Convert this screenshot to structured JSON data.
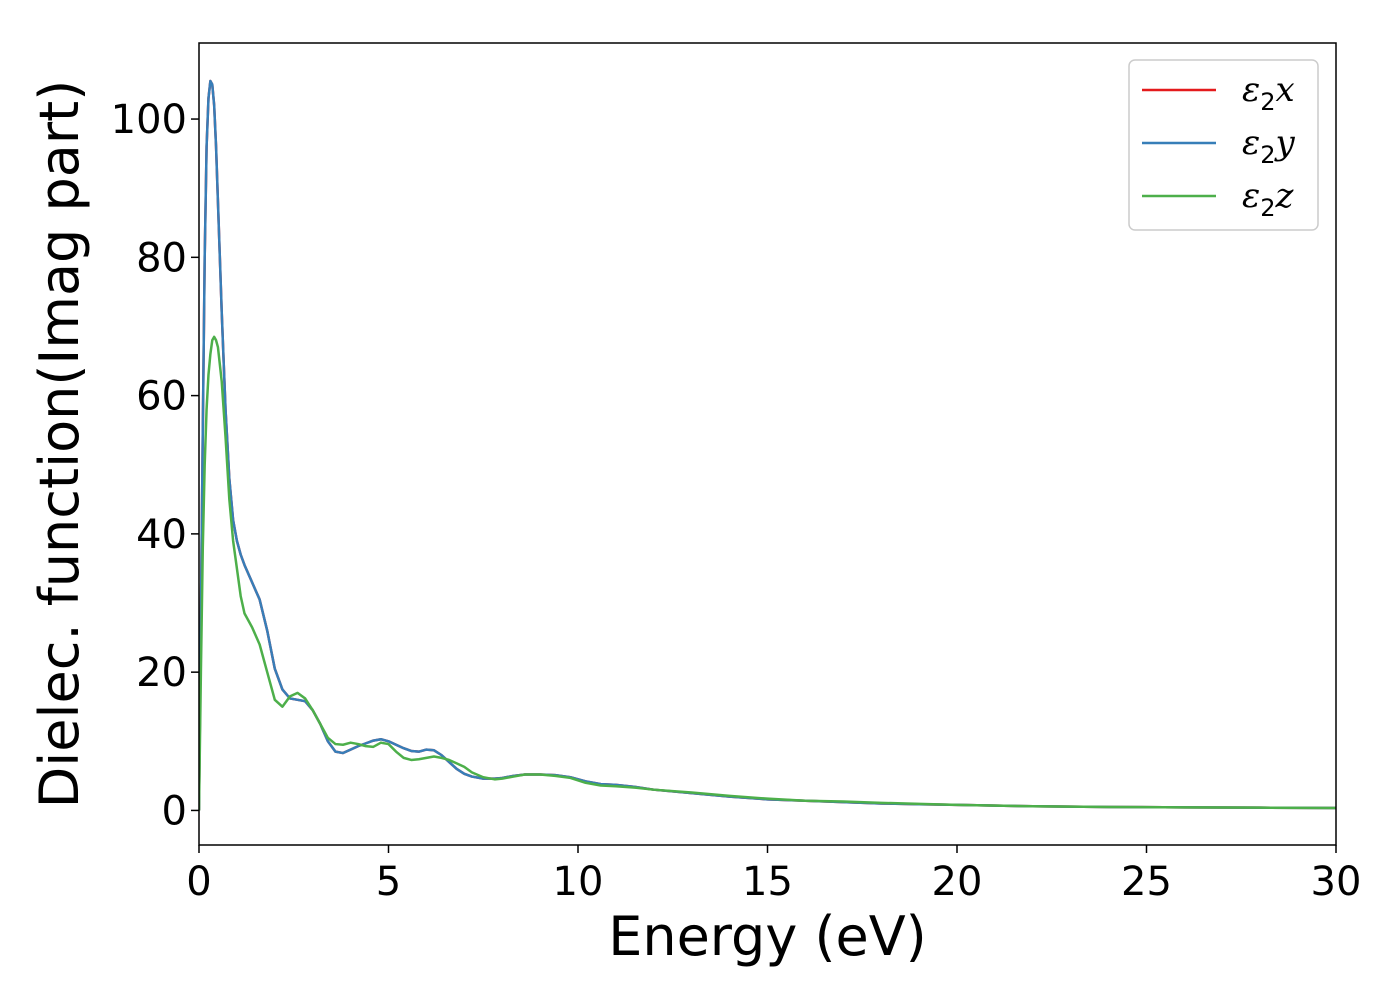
{
  "chart_data": {
    "type": "line",
    "xlabel": "Energy (eV)",
    "ylabel": "Dielec. function(Imag part)",
    "xlim": [
      0,
      30
    ],
    "ylim": [
      -5,
      111
    ],
    "xticks": [
      0,
      5,
      10,
      15,
      20,
      25,
      30
    ],
    "yticks": [
      0,
      20,
      40,
      60,
      80,
      100
    ],
    "grid": false,
    "legend_position": "top-right",
    "series": [
      {
        "name": "ε₂x",
        "legend_base": "ε",
        "legend_sub": "2",
        "legend_var": "x",
        "color": "#e41a1c",
        "x": [
          0.0,
          0.05,
          0.1,
          0.15,
          0.2,
          0.25,
          0.3,
          0.35,
          0.4,
          0.45,
          0.5,
          0.6,
          0.7,
          0.8,
          0.9,
          1.0,
          1.1,
          1.2,
          1.4,
          1.6,
          1.8,
          2.0,
          2.2,
          2.4,
          2.6,
          2.8,
          3.0,
          3.2,
          3.4,
          3.6,
          3.8,
          4.0,
          4.2,
          4.4,
          4.6,
          4.8,
          5.0,
          5.2,
          5.4,
          5.6,
          5.8,
          6.0,
          6.2,
          6.4,
          6.6,
          6.8,
          7.0,
          7.2,
          7.5,
          7.8,
          8.0,
          8.3,
          8.6,
          9.0,
          9.4,
          9.8,
          10.2,
          10.6,
          11.0,
          11.5,
          12.0,
          13.0,
          14.0,
          15.0,
          16.0,
          17.0,
          18.0,
          19.0,
          20.0,
          22.0,
          24.0,
          26.0,
          28.0,
          30.0
        ],
        "y": [
          0.0,
          28,
          55,
          80,
          96,
          103,
          105.5,
          105,
          102,
          96,
          88,
          72,
          58,
          48,
          42,
          39,
          37,
          35.5,
          33,
          30.5,
          26,
          20.5,
          17.5,
          16.2,
          16,
          15.8,
          14.5,
          12.5,
          10,
          8.5,
          8.3,
          8.8,
          9.3,
          9.7,
          10.1,
          10.3,
          10.0,
          9.5,
          9.0,
          8.6,
          8.5,
          8.8,
          8.7,
          8.0,
          7.0,
          6.0,
          5.3,
          4.9,
          4.6,
          4.6,
          4.7,
          5.0,
          5.2,
          5.2,
          5.1,
          4.8,
          4.2,
          3.8,
          3.7,
          3.4,
          3.0,
          2.5,
          2.0,
          1.6,
          1.4,
          1.2,
          1.0,
          0.9,
          0.8,
          0.6,
          0.5,
          0.45,
          0.4,
          0.35
        ]
      },
      {
        "name": "ε₂y",
        "legend_base": "ε",
        "legend_sub": "2",
        "legend_var": "y",
        "color": "#377eb8",
        "x": [
          0.0,
          0.05,
          0.1,
          0.15,
          0.2,
          0.25,
          0.3,
          0.35,
          0.4,
          0.45,
          0.5,
          0.6,
          0.7,
          0.8,
          0.9,
          1.0,
          1.1,
          1.2,
          1.4,
          1.6,
          1.8,
          2.0,
          2.2,
          2.4,
          2.6,
          2.8,
          3.0,
          3.2,
          3.4,
          3.6,
          3.8,
          4.0,
          4.2,
          4.4,
          4.6,
          4.8,
          5.0,
          5.2,
          5.4,
          5.6,
          5.8,
          6.0,
          6.2,
          6.4,
          6.6,
          6.8,
          7.0,
          7.2,
          7.5,
          7.8,
          8.0,
          8.3,
          8.6,
          9.0,
          9.4,
          9.8,
          10.2,
          10.6,
          11.0,
          11.5,
          12.0,
          13.0,
          14.0,
          15.0,
          16.0,
          17.0,
          18.0,
          19.0,
          20.0,
          22.0,
          24.0,
          26.0,
          28.0,
          30.0
        ],
        "y": [
          0.0,
          28,
          55,
          80,
          96,
          103,
          105.5,
          105,
          102,
          96,
          88,
          72,
          58,
          48,
          42,
          39,
          37,
          35.5,
          33,
          30.5,
          26,
          20.5,
          17.5,
          16.2,
          16,
          15.8,
          14.5,
          12.5,
          10,
          8.5,
          8.3,
          8.8,
          9.3,
          9.7,
          10.1,
          10.3,
          10.0,
          9.5,
          9.0,
          8.6,
          8.5,
          8.8,
          8.7,
          8.0,
          7.0,
          6.0,
          5.3,
          4.9,
          4.6,
          4.6,
          4.7,
          5.0,
          5.2,
          5.2,
          5.1,
          4.8,
          4.2,
          3.8,
          3.7,
          3.4,
          3.0,
          2.5,
          2.0,
          1.6,
          1.4,
          1.2,
          1.0,
          0.9,
          0.8,
          0.6,
          0.5,
          0.45,
          0.4,
          0.35
        ]
      },
      {
        "name": "ε₂z",
        "legend_base": "ε",
        "legend_sub": "2",
        "legend_var": "z",
        "color": "#4daf4a",
        "x": [
          0.0,
          0.05,
          0.1,
          0.15,
          0.2,
          0.25,
          0.3,
          0.35,
          0.4,
          0.45,
          0.5,
          0.6,
          0.7,
          0.8,
          0.9,
          1.0,
          1.1,
          1.2,
          1.4,
          1.6,
          1.8,
          2.0,
          2.2,
          2.4,
          2.6,
          2.8,
          3.0,
          3.2,
          3.4,
          3.6,
          3.8,
          4.0,
          4.2,
          4.4,
          4.6,
          4.8,
          5.0,
          5.2,
          5.4,
          5.6,
          5.8,
          6.0,
          6.2,
          6.4,
          6.6,
          6.8,
          7.0,
          7.2,
          7.5,
          7.8,
          8.0,
          8.3,
          8.6,
          9.0,
          9.4,
          9.8,
          10.2,
          10.6,
          11.0,
          11.5,
          12.0,
          13.0,
          14.0,
          15.0,
          16.0,
          17.0,
          18.0,
          19.0,
          20.0,
          22.0,
          24.0,
          26.0,
          28.0,
          30.0
        ],
        "y": [
          0.0,
          20,
          38,
          50,
          58,
          63,
          66,
          68,
          68.5,
          68,
          67,
          62,
          54,
          45,
          39,
          35,
          31,
          28.5,
          26.5,
          24,
          20,
          16,
          15,
          16.5,
          17,
          16.2,
          14.5,
          12.5,
          10.5,
          9.6,
          9.5,
          9.8,
          9.6,
          9.3,
          9.2,
          9.8,
          9.6,
          8.5,
          7.6,
          7.3,
          7.4,
          7.6,
          7.8,
          7.6,
          7.3,
          6.8,
          6.3,
          5.5,
          4.8,
          4.5,
          4.6,
          4.9,
          5.2,
          5.2,
          5.0,
          4.7,
          4.0,
          3.6,
          3.5,
          3.3,
          3.0,
          2.6,
          2.1,
          1.7,
          1.4,
          1.3,
          1.1,
          0.95,
          0.8,
          0.6,
          0.5,
          0.45,
          0.4,
          0.35
        ]
      }
    ]
  }
}
